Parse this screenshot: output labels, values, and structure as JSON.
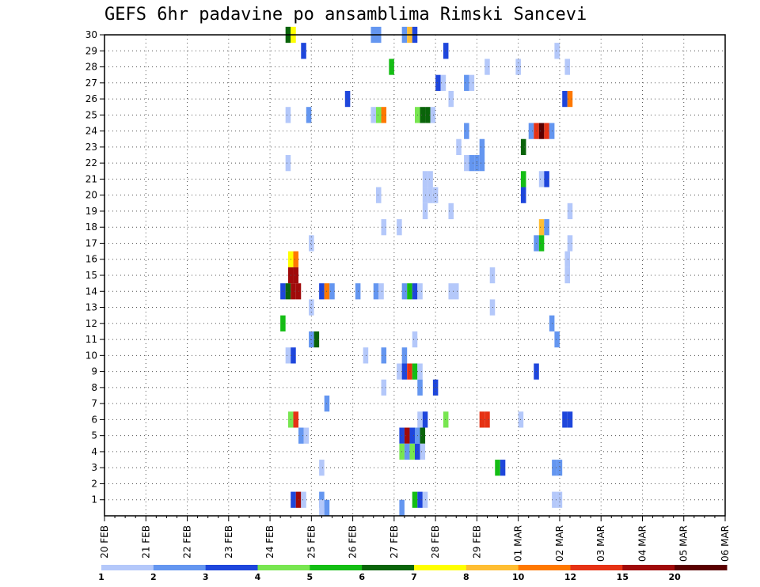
{
  "title": "GEFS 6hr padavine po ansamblima Rimski Sancevi",
  "colors": {
    "1": "#b4c8fa",
    "2": "#6496f0",
    "3": "#1e46dc",
    "4": "#78e650",
    "5": "#14be14",
    "6": "#0a640a",
    "7": "#ffff00",
    "8": "#ffbe32",
    "10": "#ff7800",
    "12": "#e63214",
    "15": "#a00a0a",
    "20": "#5a0000"
  },
  "chart_data": {
    "type": "heatmap",
    "title": "GEFS 6hr padavine po ansamblima Rimski Sancevi",
    "xlabel": "",
    "ylabel": "",
    "x_tick_labels": [
      "20 FEB",
      "21 FEB",
      "22 FEB",
      "23 FEB",
      "24 FEB",
      "25 FEB",
      "26 FEB",
      "27 FEB",
      "28 FEB",
      "29 FEB",
      "01 MAR",
      "02 MAR",
      "03 MAR",
      "04 MAR",
      "05 MAR",
      "06 MAR"
    ],
    "y_tick_labels": [
      "1",
      "2",
      "3",
      "4",
      "5",
      "6",
      "7",
      "8",
      "9",
      "10",
      "11",
      "12",
      "13",
      "14",
      "15",
      "16",
      "17",
      "18",
      "19",
      "20",
      "21",
      "22",
      "23",
      "24",
      "25",
      "26",
      "27",
      "28",
      "29",
      "30"
    ],
    "xlim": [
      0,
      60
    ],
    "ylim": [
      0,
      30
    ],
    "grid": true,
    "colorbar": {
      "position": "bottom",
      "levels": [
        1,
        2,
        3,
        4,
        5,
        6,
        7,
        8,
        10,
        12,
        15,
        20
      ],
      "label_levels": [
        "1",
        "2",
        "3",
        "4",
        "5",
        "6",
        "7",
        "8",
        "10",
        "12",
        "15",
        "20"
      ]
    },
    "cells": [
      {
        "t": 17.75,
        "m": 30,
        "v": "6"
      },
      {
        "t": 18.25,
        "m": 30,
        "v": "7"
      },
      {
        "t": 26,
        "m": 30,
        "v": "2"
      },
      {
        "t": 26.5,
        "m": 30,
        "v": "2"
      },
      {
        "t": 29,
        "m": 30,
        "v": "2"
      },
      {
        "t": 29.5,
        "m": 30,
        "v": "8"
      },
      {
        "t": 30,
        "m": 30,
        "v": "3"
      },
      {
        "t": 19.25,
        "m": 29,
        "v": "3"
      },
      {
        "t": 33,
        "m": 29,
        "v": "3"
      },
      {
        "t": 43.75,
        "m": 29,
        "v": "1"
      },
      {
        "t": 27.75,
        "m": 28,
        "v": "5"
      },
      {
        "t": 37,
        "m": 28,
        "v": "1"
      },
      {
        "t": 40,
        "m": 28,
        "v": "1"
      },
      {
        "t": 44.75,
        "m": 28,
        "v": "1"
      },
      {
        "t": 32.25,
        "m": 27,
        "v": "3"
      },
      {
        "t": 32.75,
        "m": 27,
        "v": "1"
      },
      {
        "t": 35,
        "m": 27,
        "v": "2"
      },
      {
        "t": 35.5,
        "m": 27,
        "v": "1"
      },
      {
        "t": 23.5,
        "m": 26,
        "v": "3"
      },
      {
        "t": 33.5,
        "m": 26,
        "v": "1"
      },
      {
        "t": 44.5,
        "m": 26,
        "v": "3"
      },
      {
        "t": 45,
        "m": 26,
        "v": "10"
      },
      {
        "t": 17.75,
        "m": 25,
        "v": "1"
      },
      {
        "t": 19.75,
        "m": 25,
        "v": "2"
      },
      {
        "t": 26,
        "m": 25,
        "v": "1"
      },
      {
        "t": 26.5,
        "m": 25,
        "v": "4"
      },
      {
        "t": 27,
        "m": 25,
        "v": "10"
      },
      {
        "t": 30.25,
        "m": 25,
        "v": "4"
      },
      {
        "t": 30.75,
        "m": 25,
        "v": "6"
      },
      {
        "t": 31.25,
        "m": 25,
        "v": "6"
      },
      {
        "t": 31.75,
        "m": 25,
        "v": "1"
      },
      {
        "t": 35,
        "m": 24,
        "v": "2"
      },
      {
        "t": 41.25,
        "m": 24,
        "v": "2"
      },
      {
        "t": 41.75,
        "m": 24,
        "v": "12"
      },
      {
        "t": 42.25,
        "m": 24,
        "v": "20"
      },
      {
        "t": 42.75,
        "m": 24,
        "v": "12"
      },
      {
        "t": 43.25,
        "m": 24,
        "v": "2"
      },
      {
        "t": 34.25,
        "m": 23,
        "v": "1"
      },
      {
        "t": 36.5,
        "m": 23,
        "v": "2"
      },
      {
        "t": 40.5,
        "m": 23,
        "v": "6"
      },
      {
        "t": 17.75,
        "m": 22,
        "v": "1"
      },
      {
        "t": 35,
        "m": 22,
        "v": "1"
      },
      {
        "t": 35.5,
        "m": 22,
        "v": "2"
      },
      {
        "t": 36,
        "m": 22,
        "v": "2"
      },
      {
        "t": 36.5,
        "m": 22,
        "v": "2"
      },
      {
        "t": 31,
        "m": 21,
        "v": "1"
      },
      {
        "t": 31.5,
        "m": 21,
        "v": "1"
      },
      {
        "t": 40.5,
        "m": 21,
        "v": "5"
      },
      {
        "t": 42.25,
        "m": 21,
        "v": "1"
      },
      {
        "t": 42.75,
        "m": 21,
        "v": "3"
      },
      {
        "t": 26.5,
        "m": 20,
        "v": "1"
      },
      {
        "t": 31,
        "m": 20,
        "v": "1"
      },
      {
        "t": 31.5,
        "m": 20,
        "v": "1"
      },
      {
        "t": 32,
        "m": 20,
        "v": "1"
      },
      {
        "t": 40.5,
        "m": 20,
        "v": "3"
      },
      {
        "t": 31,
        "m": 19,
        "v": "1"
      },
      {
        "t": 33.5,
        "m": 19,
        "v": "1"
      },
      {
        "t": 45,
        "m": 19,
        "v": "1"
      },
      {
        "t": 27,
        "m": 18,
        "v": "1"
      },
      {
        "t": 28.5,
        "m": 18,
        "v": "1"
      },
      {
        "t": 42.25,
        "m": 18,
        "v": "8"
      },
      {
        "t": 42.75,
        "m": 18,
        "v": "2"
      },
      {
        "t": 20,
        "m": 17,
        "v": "1"
      },
      {
        "t": 41.75,
        "m": 17,
        "v": "2"
      },
      {
        "t": 42.25,
        "m": 17,
        "v": "5"
      },
      {
        "t": 45,
        "m": 17,
        "v": "1"
      },
      {
        "t": 18,
        "m": 16,
        "v": "7"
      },
      {
        "t": 18.5,
        "m": 16,
        "v": "10"
      },
      {
        "t": 44.75,
        "m": 16,
        "v": "1"
      },
      {
        "t": 18,
        "m": 15,
        "v": "15"
      },
      {
        "t": 18.5,
        "m": 15,
        "v": "15"
      },
      {
        "t": 37.5,
        "m": 15,
        "v": "1"
      },
      {
        "t": 44.75,
        "m": 15,
        "v": "1"
      },
      {
        "t": 17.25,
        "m": 14,
        "v": "3"
      },
      {
        "t": 17.75,
        "m": 14,
        "v": "6"
      },
      {
        "t": 18.25,
        "m": 14,
        "v": "15"
      },
      {
        "t": 18.75,
        "m": 14,
        "v": "15"
      },
      {
        "t": 21,
        "m": 14,
        "v": "3"
      },
      {
        "t": 21.5,
        "m": 14,
        "v": "10"
      },
      {
        "t": 22,
        "m": 14,
        "v": "2"
      },
      {
        "t": 24.5,
        "m": 14,
        "v": "2"
      },
      {
        "t": 26.25,
        "m": 14,
        "v": "2"
      },
      {
        "t": 26.75,
        "m": 14,
        "v": "1"
      },
      {
        "t": 29,
        "m": 14,
        "v": "2"
      },
      {
        "t": 29.5,
        "m": 14,
        "v": "5"
      },
      {
        "t": 30,
        "m": 14,
        "v": "3"
      },
      {
        "t": 30.5,
        "m": 14,
        "v": "1"
      },
      {
        "t": 33.5,
        "m": 14,
        "v": "1"
      },
      {
        "t": 34,
        "m": 14,
        "v": "1"
      },
      {
        "t": 20,
        "m": 13,
        "v": "1"
      },
      {
        "t": 37.5,
        "m": 13,
        "v": "1"
      },
      {
        "t": 17.25,
        "m": 12,
        "v": "5"
      },
      {
        "t": 43.25,
        "m": 12,
        "v": "2"
      },
      {
        "t": 20,
        "m": 11,
        "v": "2"
      },
      {
        "t": 20.5,
        "m": 11,
        "v": "6"
      },
      {
        "t": 30,
        "m": 11,
        "v": "1"
      },
      {
        "t": 43.75,
        "m": 11,
        "v": "2"
      },
      {
        "t": 17.75,
        "m": 10,
        "v": "1"
      },
      {
        "t": 18.25,
        "m": 10,
        "v": "3"
      },
      {
        "t": 25.25,
        "m": 10,
        "v": "1"
      },
      {
        "t": 27,
        "m": 10,
        "v": "2"
      },
      {
        "t": 29,
        "m": 10,
        "v": "2"
      },
      {
        "t": 28.5,
        "m": 9,
        "v": "1"
      },
      {
        "t": 29,
        "m": 9,
        "v": "3"
      },
      {
        "t": 29.5,
        "m": 9,
        "v": "12"
      },
      {
        "t": 30,
        "m": 9,
        "v": "5"
      },
      {
        "t": 30.5,
        "m": 9,
        "v": "1"
      },
      {
        "t": 41.75,
        "m": 9,
        "v": "3"
      },
      {
        "t": 27,
        "m": 8,
        "v": "1"
      },
      {
        "t": 30.5,
        "m": 8,
        "v": "2"
      },
      {
        "t": 32,
        "m": 8,
        "v": "3"
      },
      {
        "t": 21.5,
        "m": 7,
        "v": "2"
      },
      {
        "t": 18,
        "m": 6,
        "v": "4"
      },
      {
        "t": 18.5,
        "m": 6,
        "v": "12"
      },
      {
        "t": 30.5,
        "m": 6,
        "v": "1"
      },
      {
        "t": 31,
        "m": 6,
        "v": "3"
      },
      {
        "t": 33,
        "m": 6,
        "v": "4"
      },
      {
        "t": 36.5,
        "m": 6,
        "v": "12"
      },
      {
        "t": 37,
        "m": 6,
        "v": "12"
      },
      {
        "t": 40.25,
        "m": 6,
        "v": "1"
      },
      {
        "t": 44.5,
        "m": 6,
        "v": "3"
      },
      {
        "t": 45,
        "m": 6,
        "v": "3"
      },
      {
        "t": 19,
        "m": 5,
        "v": "2"
      },
      {
        "t": 19.5,
        "m": 5,
        "v": "1"
      },
      {
        "t": 28.75,
        "m": 5,
        "v": "3"
      },
      {
        "t": 29.25,
        "m": 5,
        "v": "15"
      },
      {
        "t": 29.75,
        "m": 5,
        "v": "3"
      },
      {
        "t": 30.25,
        "m": 5,
        "v": "2"
      },
      {
        "t": 30.75,
        "m": 5,
        "v": "6"
      },
      {
        "t": 28.75,
        "m": 4,
        "v": "4"
      },
      {
        "t": 29.25,
        "m": 4,
        "v": "2"
      },
      {
        "t": 29.75,
        "m": 4,
        "v": "4"
      },
      {
        "t": 30.25,
        "m": 4,
        "v": "3"
      },
      {
        "t": 30.75,
        "m": 4,
        "v": "1"
      },
      {
        "t": 21,
        "m": 3,
        "v": "1"
      },
      {
        "t": 38,
        "m": 3,
        "v": "5"
      },
      {
        "t": 38.5,
        "m": 3,
        "v": "3"
      },
      {
        "t": 43.5,
        "m": 3,
        "v": "2"
      },
      {
        "t": 44,
        "m": 3,
        "v": "2"
      },
      {
        "t": 18.25,
        "m": 1,
        "v": "3"
      },
      {
        "t": 18.75,
        "m": 1,
        "v": "15"
      },
      {
        "t": 19.25,
        "m": 1,
        "v": "1"
      },
      {
        "t": 21,
        "m": 1,
        "v": "2"
      },
      {
        "t": 30,
        "m": 1,
        "v": "5"
      },
      {
        "t": 30.5,
        "m": 1,
        "v": "3"
      },
      {
        "t": 31,
        "m": 1,
        "v": "1"
      },
      {
        "t": 43.5,
        "m": 1,
        "v": "1"
      },
      {
        "t": 44,
        "m": 1,
        "v": "1"
      },
      {
        "t": 21,
        "m": 0.5,
        "v": "1"
      },
      {
        "t": 21.5,
        "m": 0.5,
        "v": "2"
      },
      {
        "t": 28.75,
        "m": 0.5,
        "v": "2"
      }
    ]
  }
}
